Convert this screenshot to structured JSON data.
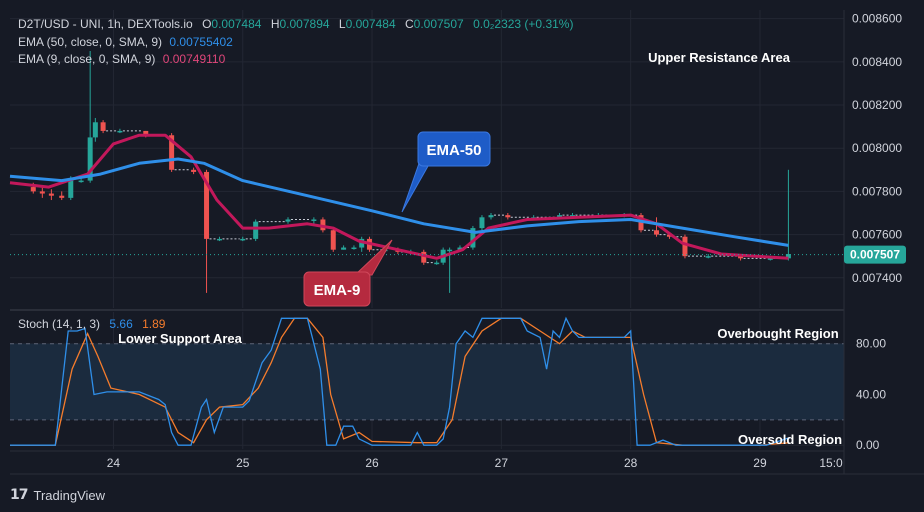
{
  "header": {
    "symbol": "D2T/USD - UNI, 1h, DEXTools.io",
    "ohlc": [
      {
        "k": "O",
        "v": "0.007484"
      },
      {
        "k": "H",
        "v": "0.007894"
      },
      {
        "k": "L",
        "v": "0.007484"
      },
      {
        "k": "C",
        "v": "0.007507"
      }
    ],
    "change": "0.0₂2323 (+0.31%)",
    "ema50_label": "EMA (50, close, 0, SMA, 9)",
    "ema50_value": "0.00755402",
    "ema9_label": "EMA (9, close, 0, SMA, 9)",
    "ema9_value": "0.00749110"
  },
  "annotations": {
    "upper_resistance": "Upper Resistance Area",
    "lower_support": "Lower Support Area",
    "overbought": "Overbought Region",
    "oversold": "Oversold Region",
    "ema50_callout": "EMA-50",
    "ema9_callout": "EMA-9"
  },
  "stoch": {
    "label": "Stoch (14, 1, 3)",
    "k_value": "5.66",
    "d_value": "1.89"
  },
  "footer": {
    "brand": "TradingView",
    "logo_text": "17"
  },
  "colors": {
    "background": "#161a25",
    "grid": "#232733",
    "up": "#26a69a",
    "down": "#ef5350",
    "ema50": "#2f8fe9",
    "ema9": "#c2185b",
    "stoch_k": "#2f8fe9",
    "stoch_d": "#f57c2c",
    "band_fill": "#1b2b3e",
    "price_tag": "#26a69a",
    "ema50_box": "#1e5cc7",
    "ema9_box": "#b52a3f"
  },
  "chart_data": {
    "type": "candlestick",
    "x_ticks": [
      "24",
      "25",
      "26",
      "27",
      "28",
      "29",
      "15:0"
    ],
    "price_ticks": [
      "0.008600",
      "0.008400",
      "0.008200",
      "0.008000",
      "0.007800",
      "0.007600",
      "0.007400"
    ],
    "price_tick_values": [
      0.0086,
      0.0084,
      0.0082,
      0.008,
      0.0078,
      0.0076,
      0.0074
    ],
    "y_range": [
      0.00726,
      0.00864
    ],
    "last_price": "0.007507",
    "last_price_value": 0.007507,
    "stoch_ticks": [
      "80.00",
      "40.00",
      "0.00"
    ],
    "stoch_tick_values": [
      80,
      40,
      0
    ],
    "stoch_range": [
      -3,
      105
    ],
    "stoch_band": [
      20,
      80
    ],
    "x_day_range": [
      23.2,
      29.65
    ],
    "candles": [
      [
        23.38,
        0.00782,
        0.0078,
        0.00784,
        0.00779
      ],
      [
        23.45,
        0.0078,
        0.00779,
        0.00782,
        0.00777
      ],
      [
        23.52,
        0.00779,
        0.00778,
        0.00781,
        0.00776
      ],
      [
        23.6,
        0.00778,
        0.00777,
        0.0078,
        0.00776
      ],
      [
        23.67,
        0.00777,
        0.00785,
        0.00787,
        0.00776
      ],
      [
        23.75,
        0.00785,
        0.00785,
        0.00786,
        0.00784
      ],
      [
        23.82,
        0.00785,
        0.00805,
        0.00845,
        0.00784
      ],
      [
        23.86,
        0.00805,
        0.00812,
        0.00814,
        0.00803
      ],
      [
        23.92,
        0.00812,
        0.00808,
        0.00813,
        0.00807
      ],
      [
        24.05,
        0.00808,
        0.00808,
        0.00809,
        0.00807
      ],
      [
        24.25,
        0.00808,
        0.00806,
        0.00808,
        0.00805
      ],
      [
        24.45,
        0.00806,
        0.0079,
        0.00807,
        0.00789
      ],
      [
        24.62,
        0.0079,
        0.00789,
        0.00791,
        0.00788
      ],
      [
        24.72,
        0.00789,
        0.00758,
        0.0079,
        0.00733
      ],
      [
        24.82,
        0.00758,
        0.00758,
        0.00759,
        0.00757
      ],
      [
        25.0,
        0.00758,
        0.00758,
        0.00759,
        0.00757
      ],
      [
        25.1,
        0.00758,
        0.00766,
        0.00767,
        0.00757
      ],
      [
        25.35,
        0.00766,
        0.00767,
        0.00768,
        0.00765
      ],
      [
        25.55,
        0.00767,
        0.00767,
        0.00768,
        0.00765
      ],
      [
        25.62,
        0.00767,
        0.00762,
        0.00768,
        0.00761
      ],
      [
        25.7,
        0.00762,
        0.00753,
        0.00763,
        0.00752
      ],
      [
        25.78,
        0.00753,
        0.00754,
        0.00755,
        0.00753
      ],
      [
        25.86,
        0.00754,
        0.00754,
        0.00755,
        0.00753
      ],
      [
        25.92,
        0.00754,
        0.00758,
        0.00759,
        0.00752
      ],
      [
        25.98,
        0.00758,
        0.00753,
        0.00759,
        0.00752
      ],
      [
        26.1,
        0.00753,
        0.00753,
        0.00754,
        0.00752
      ],
      [
        26.2,
        0.00753,
        0.00752,
        0.00754,
        0.00751
      ],
      [
        26.3,
        0.00752,
        0.00752,
        0.00753,
        0.00751
      ],
      [
        26.4,
        0.00752,
        0.00747,
        0.00753,
        0.00746
      ],
      [
        26.5,
        0.00747,
        0.00747,
        0.00748,
        0.00746
      ],
      [
        26.55,
        0.00747,
        0.00753,
        0.00754,
        0.00746
      ],
      [
        26.6,
        0.00753,
        0.00753,
        0.00754,
        0.00733
      ],
      [
        26.68,
        0.00753,
        0.00754,
        0.00755,
        0.00752
      ],
      [
        26.78,
        0.00754,
        0.00763,
        0.00764,
        0.00753
      ],
      [
        26.85,
        0.00763,
        0.00768,
        0.00769,
        0.00762
      ],
      [
        26.92,
        0.00768,
        0.00769,
        0.0077,
        0.00767
      ],
      [
        27.05,
        0.00769,
        0.00768,
        0.0077,
        0.00767
      ],
      [
        27.25,
        0.00768,
        0.00768,
        0.00769,
        0.00767
      ],
      [
        27.45,
        0.00768,
        0.00769,
        0.0077,
        0.00767
      ],
      [
        27.55,
        0.00769,
        0.00769,
        0.0077,
        0.00768
      ],
      [
        27.75,
        0.00769,
        0.00769,
        0.0077,
        0.00768
      ],
      [
        27.95,
        0.00769,
        0.00769,
        0.0077,
        0.00768
      ],
      [
        28.08,
        0.00769,
        0.00762,
        0.0077,
        0.00761
      ],
      [
        28.2,
        0.00762,
        0.0076,
        0.00768,
        0.00759
      ],
      [
        28.3,
        0.0076,
        0.00759,
        0.00761,
        0.00758
      ],
      [
        28.42,
        0.00759,
        0.0075,
        0.0076,
        0.00749
      ],
      [
        28.6,
        0.0075,
        0.0075,
        0.00751,
        0.00749
      ],
      [
        28.85,
        0.0075,
        0.00749,
        0.0075,
        0.00748
      ],
      [
        29.08,
        0.00749,
        0.00749,
        0.0075,
        0.00748
      ],
      [
        29.22,
        0.00749,
        0.00751,
        0.0079,
        0.00748
      ]
    ],
    "ema50": [
      [
        23.2,
        0.00787
      ],
      [
        23.6,
        0.00785
      ],
      [
        23.9,
        0.00788
      ],
      [
        24.2,
        0.00793
      ],
      [
        24.5,
        0.00795
      ],
      [
        24.7,
        0.00793
      ],
      [
        25.0,
        0.00785
      ],
      [
        25.5,
        0.00778
      ],
      [
        26.0,
        0.00771
      ],
      [
        26.4,
        0.00765
      ],
      [
        26.8,
        0.00761
      ],
      [
        27.2,
        0.00764
      ],
      [
        27.6,
        0.00766
      ],
      [
        28.0,
        0.00767
      ],
      [
        28.4,
        0.00763
      ],
      [
        28.8,
        0.00759
      ],
      [
        29.22,
        0.00755
      ]
    ],
    "ema9": [
      [
        23.2,
        0.00784
      ],
      [
        23.5,
        0.00782
      ],
      [
        23.8,
        0.00788
      ],
      [
        24.0,
        0.00802
      ],
      [
        24.2,
        0.00806
      ],
      [
        24.4,
        0.00806
      ],
      [
        24.6,
        0.00796
      ],
      [
        24.8,
        0.00776
      ],
      [
        25.0,
        0.00763
      ],
      [
        25.2,
        0.00763
      ],
      [
        25.5,
        0.00765
      ],
      [
        25.7,
        0.00763
      ],
      [
        25.9,
        0.00757
      ],
      [
        26.2,
        0.00753
      ],
      [
        26.5,
        0.00749
      ],
      [
        26.7,
        0.00753
      ],
      [
        26.9,
        0.00763
      ],
      [
        27.2,
        0.00767
      ],
      [
        27.6,
        0.00768
      ],
      [
        28.0,
        0.00769
      ],
      [
        28.2,
        0.00765
      ],
      [
        28.4,
        0.00756
      ],
      [
        28.7,
        0.00751
      ],
      [
        29.22,
        0.00749
      ]
    ],
    "stoch_k": [
      [
        23.2,
        0
      ],
      [
        23.55,
        0
      ],
      [
        23.65,
        90
      ],
      [
        23.72,
        90
      ],
      [
        23.78,
        92
      ],
      [
        23.85,
        40
      ],
      [
        23.95,
        42
      ],
      [
        24.2,
        42
      ],
      [
        24.35,
        36
      ],
      [
        24.4,
        32
      ],
      [
        24.45,
        10
      ],
      [
        24.5,
        0
      ],
      [
        24.6,
        0
      ],
      [
        24.68,
        30
      ],
      [
        24.72,
        36
      ],
      [
        24.78,
        10
      ],
      [
        24.85,
        30
      ],
      [
        25.0,
        30
      ],
      [
        25.05,
        35
      ],
      [
        25.15,
        65
      ],
      [
        25.22,
        75
      ],
      [
        25.3,
        100
      ],
      [
        25.5,
        100
      ],
      [
        25.55,
        80
      ],
      [
        25.6,
        60
      ],
      [
        25.65,
        0
      ],
      [
        25.72,
        0
      ],
      [
        25.78,
        15
      ],
      [
        25.85,
        15
      ],
      [
        25.9,
        5
      ],
      [
        26.0,
        0
      ],
      [
        26.3,
        0
      ],
      [
        26.35,
        10
      ],
      [
        26.4,
        0
      ],
      [
        26.5,
        0
      ],
      [
        26.55,
        5
      ],
      [
        26.6,
        30
      ],
      [
        26.65,
        80
      ],
      [
        26.72,
        90
      ],
      [
        26.78,
        85
      ],
      [
        26.85,
        100
      ],
      [
        27.15,
        100
      ],
      [
        27.2,
        90
      ],
      [
        27.3,
        85
      ],
      [
        27.35,
        60
      ],
      [
        27.4,
        90
      ],
      [
        27.45,
        85
      ],
      [
        27.5,
        100
      ],
      [
        27.55,
        90
      ],
      [
        27.6,
        85
      ],
      [
        27.95,
        85
      ],
      [
        28.0,
        90
      ],
      [
        28.05,
        0
      ],
      [
        28.15,
        0
      ],
      [
        28.25,
        4
      ],
      [
        28.35,
        0
      ],
      [
        29.05,
        0
      ],
      [
        29.22,
        5.66
      ]
    ],
    "stoch_d": [
      [
        23.2,
        0
      ],
      [
        23.55,
        0
      ],
      [
        23.68,
        60
      ],
      [
        23.8,
        88
      ],
      [
        23.88,
        70
      ],
      [
        23.98,
        45
      ],
      [
        24.2,
        40
      ],
      [
        24.4,
        30
      ],
      [
        24.5,
        10
      ],
      [
        24.62,
        2
      ],
      [
        24.72,
        20
      ],
      [
        24.82,
        30
      ],
      [
        25.0,
        32
      ],
      [
        25.12,
        45
      ],
      [
        25.22,
        65
      ],
      [
        25.3,
        85
      ],
      [
        25.4,
        100
      ],
      [
        25.5,
        100
      ],
      [
        25.62,
        85
      ],
      [
        25.68,
        40
      ],
      [
        25.78,
        5
      ],
      [
        25.9,
        10
      ],
      [
        26.0,
        3
      ],
      [
        26.35,
        2
      ],
      [
        26.5,
        2
      ],
      [
        26.62,
        20
      ],
      [
        26.72,
        70
      ],
      [
        26.85,
        90
      ],
      [
        27.0,
        100
      ],
      [
        27.15,
        100
      ],
      [
        27.3,
        90
      ],
      [
        27.45,
        80
      ],
      [
        27.55,
        90
      ],
      [
        27.65,
        85
      ],
      [
        28.0,
        85
      ],
      [
        28.1,
        40
      ],
      [
        28.2,
        2
      ],
      [
        28.4,
        0
      ],
      [
        29.0,
        0
      ],
      [
        29.22,
        1.89
      ]
    ]
  }
}
